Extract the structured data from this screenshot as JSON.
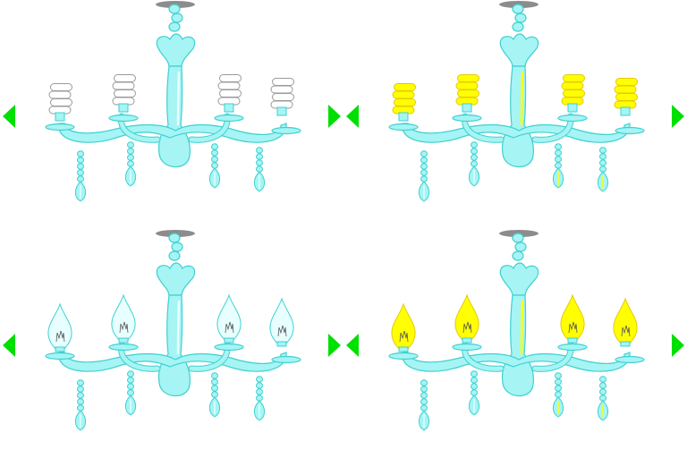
{
  "colors": {
    "glass": "#a6f4f4",
    "glass_stroke": "#3fd0d0",
    "highlight": "#e8ffff",
    "ceiling_cap": "#8c8c8c",
    "lit": "#ffff00",
    "lit_stroke": "#e8c800",
    "unlit_cfl": "#ffffff",
    "unlit_stroke": "#9a9a9a",
    "nav_arrow": "#00e000"
  },
  "panels": [
    {
      "bulb_type": "cfl-spiral",
      "lit": false
    },
    {
      "bulb_type": "cfl-spiral",
      "lit": true
    },
    {
      "bulb_type": "candle-flame",
      "lit": false
    },
    {
      "bulb_type": "candle-flame",
      "lit": true
    }
  ],
  "icons": {
    "prev": "triangle-left-icon",
    "next": "triangle-right-icon"
  }
}
